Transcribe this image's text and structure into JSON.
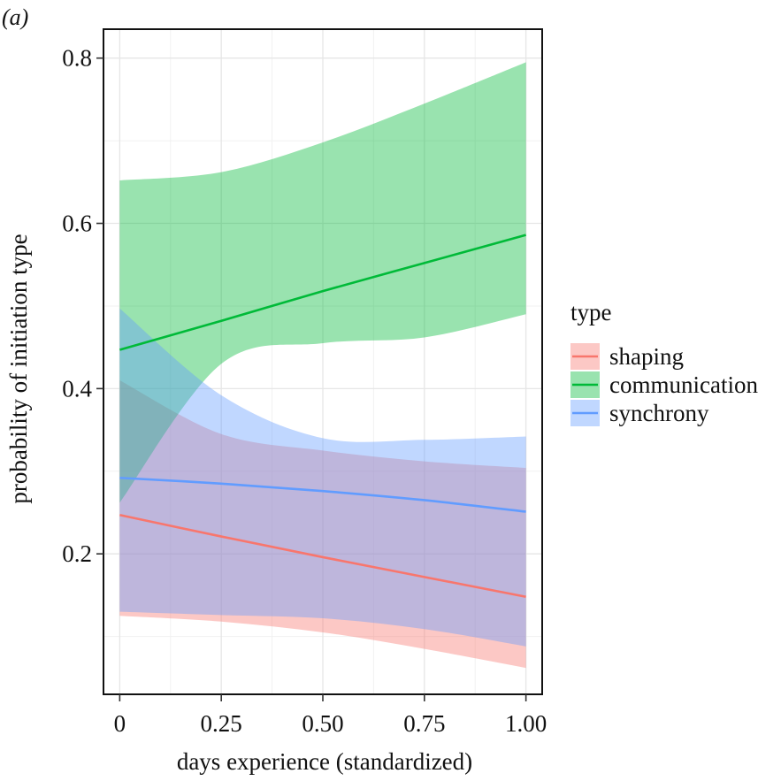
{
  "panel_label": "(a)",
  "chart_data": {
    "type": "line",
    "title": "",
    "xlabel": "days experience (standardized)",
    "ylabel": "probability of initiation type",
    "xlim": [
      -0.04,
      1.04
    ],
    "ylim": [
      0.03,
      0.835
    ],
    "x_ticks": [
      0,
      0.25,
      0.5,
      0.75,
      1.0
    ],
    "x_tick_labels": [
      "0",
      "0.25",
      "0.50",
      "0.75",
      "1.00"
    ],
    "y_ticks": [
      0.2,
      0.4,
      0.6,
      0.8
    ],
    "y_tick_labels": [
      "0.2",
      "0.4",
      "0.6",
      "0.8"
    ],
    "grid": true,
    "legend": {
      "title": "type",
      "position": "right"
    },
    "series": [
      {
        "name": "shaping",
        "color": "#F8766D",
        "band_color": "#F8766D",
        "x": [
          0,
          0.25,
          0.5,
          0.75,
          1.0
        ],
        "mean": [
          0.247,
          0.221,
          0.196,
          0.172,
          0.148
        ],
        "upper": [
          0.41,
          0.345,
          0.325,
          0.312,
          0.304
        ],
        "lower": [
          0.125,
          0.118,
          0.105,
          0.085,
          0.062
        ]
      },
      {
        "name": "communication",
        "color": "#00BA38",
        "band_color": "#00BA38",
        "x": [
          0,
          0.25,
          0.5,
          0.75,
          1.0
        ],
        "mean": [
          0.447,
          0.482,
          0.518,
          0.552,
          0.586
        ],
        "upper": [
          0.652,
          0.662,
          0.698,
          0.745,
          0.795
        ],
        "lower": [
          0.262,
          0.43,
          0.455,
          0.462,
          0.49
        ]
      },
      {
        "name": "synchrony",
        "color": "#619CFF",
        "band_color": "#619CFF",
        "x": [
          0,
          0.25,
          0.5,
          0.75,
          1.0
        ],
        "mean": [
          0.292,
          0.285,
          0.276,
          0.265,
          0.251
        ],
        "upper": [
          0.497,
          0.392,
          0.34,
          0.338,
          0.342
        ],
        "lower": [
          0.13,
          0.126,
          0.122,
          0.109,
          0.088
        ]
      }
    ]
  }
}
